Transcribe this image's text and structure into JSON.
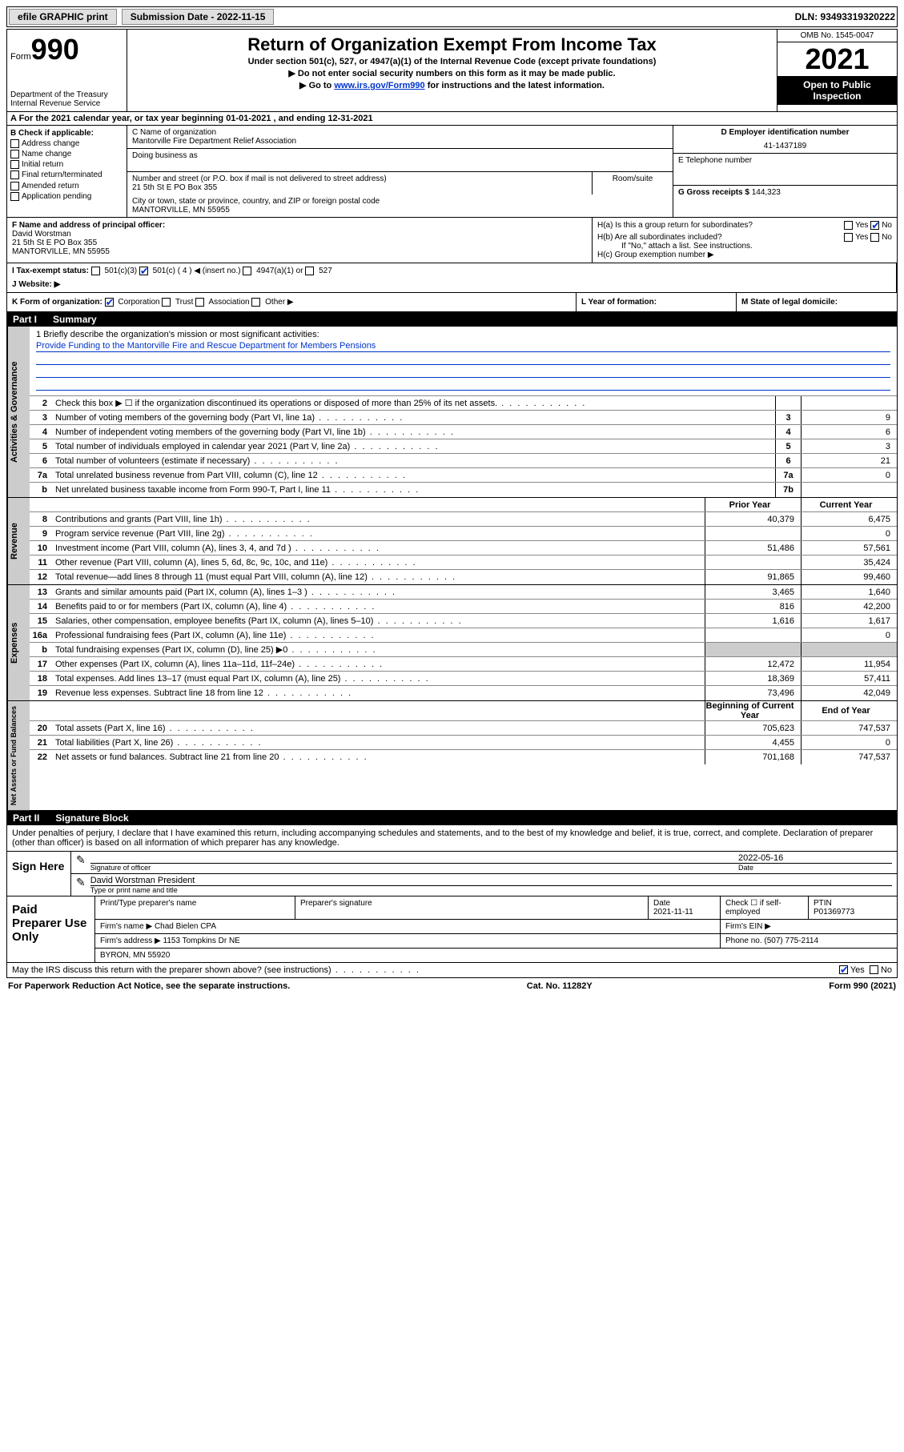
{
  "topbar": {
    "efile": "efile GRAPHIC print",
    "submission_label": "Submission Date - 2022-11-15",
    "dln": "DLN: 93493319320222"
  },
  "header": {
    "form_word": "Form",
    "form_num": "990",
    "dept": "Department of the Treasury",
    "irs": "Internal Revenue Service",
    "title": "Return of Organization Exempt From Income Tax",
    "sub1": "Under section 501(c), 527, or 4947(a)(1) of the Internal Revenue Code (except private foundations)",
    "sub2": "▶ Do not enter social security numbers on this form as it may be made public.",
    "sub3_pre": "▶ Go to ",
    "sub3_link": "www.irs.gov/Form990",
    "sub3_post": " for instructions and the latest information.",
    "omb": "OMB No. 1545-0047",
    "year": "2021",
    "inspect": "Open to Public Inspection"
  },
  "row_a": "A For the 2021 calendar year, or tax year beginning 01-01-2021   , and ending 12-31-2021",
  "col_b": {
    "label": "B Check if applicable:",
    "items": [
      "Address change",
      "Name change",
      "Initial return",
      "Final return/terminated",
      "Amended return",
      "Application pending"
    ]
  },
  "col_c": {
    "name_label": "C Name of organization",
    "name": "Mantorville Fire Department Relief Association",
    "dba_label": "Doing business as",
    "addr_label": "Number and street (or P.O. box if mail is not delivered to street address)",
    "room_label": "Room/suite",
    "addr": "21 5th St E PO Box 355",
    "city_label": "City or town, state or province, country, and ZIP or foreign postal code",
    "city": "MANTORVILLE, MN  55955"
  },
  "col_de": {
    "d_label": "D Employer identification number",
    "ein": "41-1437189",
    "e_label": "E Telephone number",
    "g_label": "G Gross receipts $",
    "g_val": "144,323"
  },
  "f": {
    "label": "F Name and address of principal officer:",
    "name": "David Worstman",
    "addr1": "21 5th St E PO Box 355",
    "addr2": "MANTORVILLE, MN  55955"
  },
  "h": {
    "a": "H(a)  Is this a group return for subordinates?",
    "yes": "Yes",
    "no": "No",
    "b": "H(b)  Are all subordinates included?",
    "b_note": "If \"No,\" attach a list. See instructions.",
    "c": "H(c)  Group exemption number ▶"
  },
  "i": {
    "label": "I   Tax-exempt status:",
    "o1": "501(c)(3)",
    "o2": "501(c) ( 4 ) ◀ (insert no.)",
    "o3": "4947(a)(1) or",
    "o4": "527"
  },
  "j": "J   Website: ▶",
  "k": {
    "label": "K Form of organization:",
    "o1": "Corporation",
    "o2": "Trust",
    "o3": "Association",
    "o4": "Other ▶",
    "l": "L Year of formation:",
    "m": "M State of legal domicile:"
  },
  "part1": {
    "pn": "Part I",
    "title": "Summary"
  },
  "mission": {
    "q": "1   Briefly describe the organization's mission or most significant activities:",
    "text": "Provide Funding to the Mantorville Fire and Rescue Department for Members Pensions"
  },
  "lines_gov": [
    {
      "n": "2",
      "d": "Check this box ▶ ☐  if the organization discontinued its operations or disposed of more than 25% of its net assets.",
      "box": "",
      "v": ""
    },
    {
      "n": "3",
      "d": "Number of voting members of the governing body (Part VI, line 1a)",
      "box": "3",
      "v": "9"
    },
    {
      "n": "4",
      "d": "Number of independent voting members of the governing body (Part VI, line 1b)",
      "box": "4",
      "v": "6"
    },
    {
      "n": "5",
      "d": "Total number of individuals employed in calendar year 2021 (Part V, line 2a)",
      "box": "5",
      "v": "3"
    },
    {
      "n": "6",
      "d": "Total number of volunteers (estimate if necessary)",
      "box": "6",
      "v": "21"
    },
    {
      "n": "7a",
      "d": "Total unrelated business revenue from Part VIII, column (C), line 12",
      "box": "7a",
      "v": "0"
    },
    {
      "n": "b",
      "d": "Net unrelated business taxable income from Form 990-T, Part I, line 11",
      "box": "7b",
      "v": ""
    }
  ],
  "col_hdr": {
    "prior": "Prior Year",
    "curr": "Current Year"
  },
  "lines_rev": [
    {
      "n": "8",
      "d": "Contributions and grants (Part VIII, line 1h)",
      "p": "40,379",
      "c": "6,475"
    },
    {
      "n": "9",
      "d": "Program service revenue (Part VIII, line 2g)",
      "p": "",
      "c": "0"
    },
    {
      "n": "10",
      "d": "Investment income (Part VIII, column (A), lines 3, 4, and 7d )",
      "p": "51,486",
      "c": "57,561"
    },
    {
      "n": "11",
      "d": "Other revenue (Part VIII, column (A), lines 5, 6d, 8c, 9c, 10c, and 11e)",
      "p": "",
      "c": "35,424"
    },
    {
      "n": "12",
      "d": "Total revenue—add lines 8 through 11 (must equal Part VIII, column (A), line 12)",
      "p": "91,865",
      "c": "99,460"
    }
  ],
  "lines_exp": [
    {
      "n": "13",
      "d": "Grants and similar amounts paid (Part IX, column (A), lines 1–3 )",
      "p": "3,465",
      "c": "1,640"
    },
    {
      "n": "14",
      "d": "Benefits paid to or for members (Part IX, column (A), line 4)",
      "p": "816",
      "c": "42,200"
    },
    {
      "n": "15",
      "d": "Salaries, other compensation, employee benefits (Part IX, column (A), lines 5–10)",
      "p": "1,616",
      "c": "1,617"
    },
    {
      "n": "16a",
      "d": "Professional fundraising fees (Part IX, column (A), line 11e)",
      "p": "",
      "c": "0"
    },
    {
      "n": "b",
      "d": "Total fundraising expenses (Part IX, column (D), line 25) ▶0",
      "p": "shade",
      "c": "shade"
    },
    {
      "n": "17",
      "d": "Other expenses (Part IX, column (A), lines 11a–11d, 11f–24e)",
      "p": "12,472",
      "c": "11,954"
    },
    {
      "n": "18",
      "d": "Total expenses. Add lines 13–17 (must equal Part IX, column (A), line 25)",
      "p": "18,369",
      "c": "57,411"
    },
    {
      "n": "19",
      "d": "Revenue less expenses. Subtract line 18 from line 12",
      "p": "73,496",
      "c": "42,049"
    }
  ],
  "net_hdr": {
    "beg": "Beginning of Current Year",
    "end": "End of Year"
  },
  "lines_net": [
    {
      "n": "20",
      "d": "Total assets (Part X, line 16)",
      "p": "705,623",
      "c": "747,537"
    },
    {
      "n": "21",
      "d": "Total liabilities (Part X, line 26)",
      "p": "4,455",
      "c": "0"
    },
    {
      "n": "22",
      "d": "Net assets or fund balances. Subtract line 21 from line 20",
      "p": "701,168",
      "c": "747,537"
    }
  ],
  "vtabs": {
    "gov": "Activities & Governance",
    "rev": "Revenue",
    "exp": "Expenses",
    "net": "Net Assets or Fund Balances"
  },
  "part2": {
    "pn": "Part II",
    "title": "Signature Block"
  },
  "sig": {
    "decl": "Under penalties of perjury, I declare that I have examined this return, including accompanying schedules and statements, and to the best of my knowledge and belief, it is true, correct, and complete. Declaration of preparer (other than officer) is based on all information of which preparer has any knowledge.",
    "here": "Sign Here",
    "sig_of": "Signature of officer",
    "date": "2022-05-16",
    "date_lbl": "Date",
    "name": "David Worstman  President",
    "name_lbl": "Type or print name and title"
  },
  "paid": {
    "label": "Paid Preparer Use Only",
    "h1": "Print/Type preparer's name",
    "h2": "Preparer's signature",
    "h3": "Date",
    "date": "2021-11-11",
    "h4": "Check ☐ if self-employed",
    "h5": "PTIN",
    "ptin": "P01369773",
    "firm_lbl": "Firm's name    ▶",
    "firm": "Chad Bielen CPA",
    "ein_lbl": "Firm's EIN ▶",
    "addr_lbl": "Firm's address ▶",
    "addr1": "1153 Tompkins Dr NE",
    "addr2": "BYRON, MN  55920",
    "phone_lbl": "Phone no.",
    "phone": "(507) 775-2114",
    "discuss": "May the IRS discuss this return with the preparer shown above? (see instructions)"
  },
  "footer": {
    "left": "For Paperwork Reduction Act Notice, see the separate instructions.",
    "mid": "Cat. No. 11282Y",
    "right": "Form 990 (2021)"
  },
  "colors": {
    "link": "#0033cc",
    "shade": "#cccccc"
  }
}
